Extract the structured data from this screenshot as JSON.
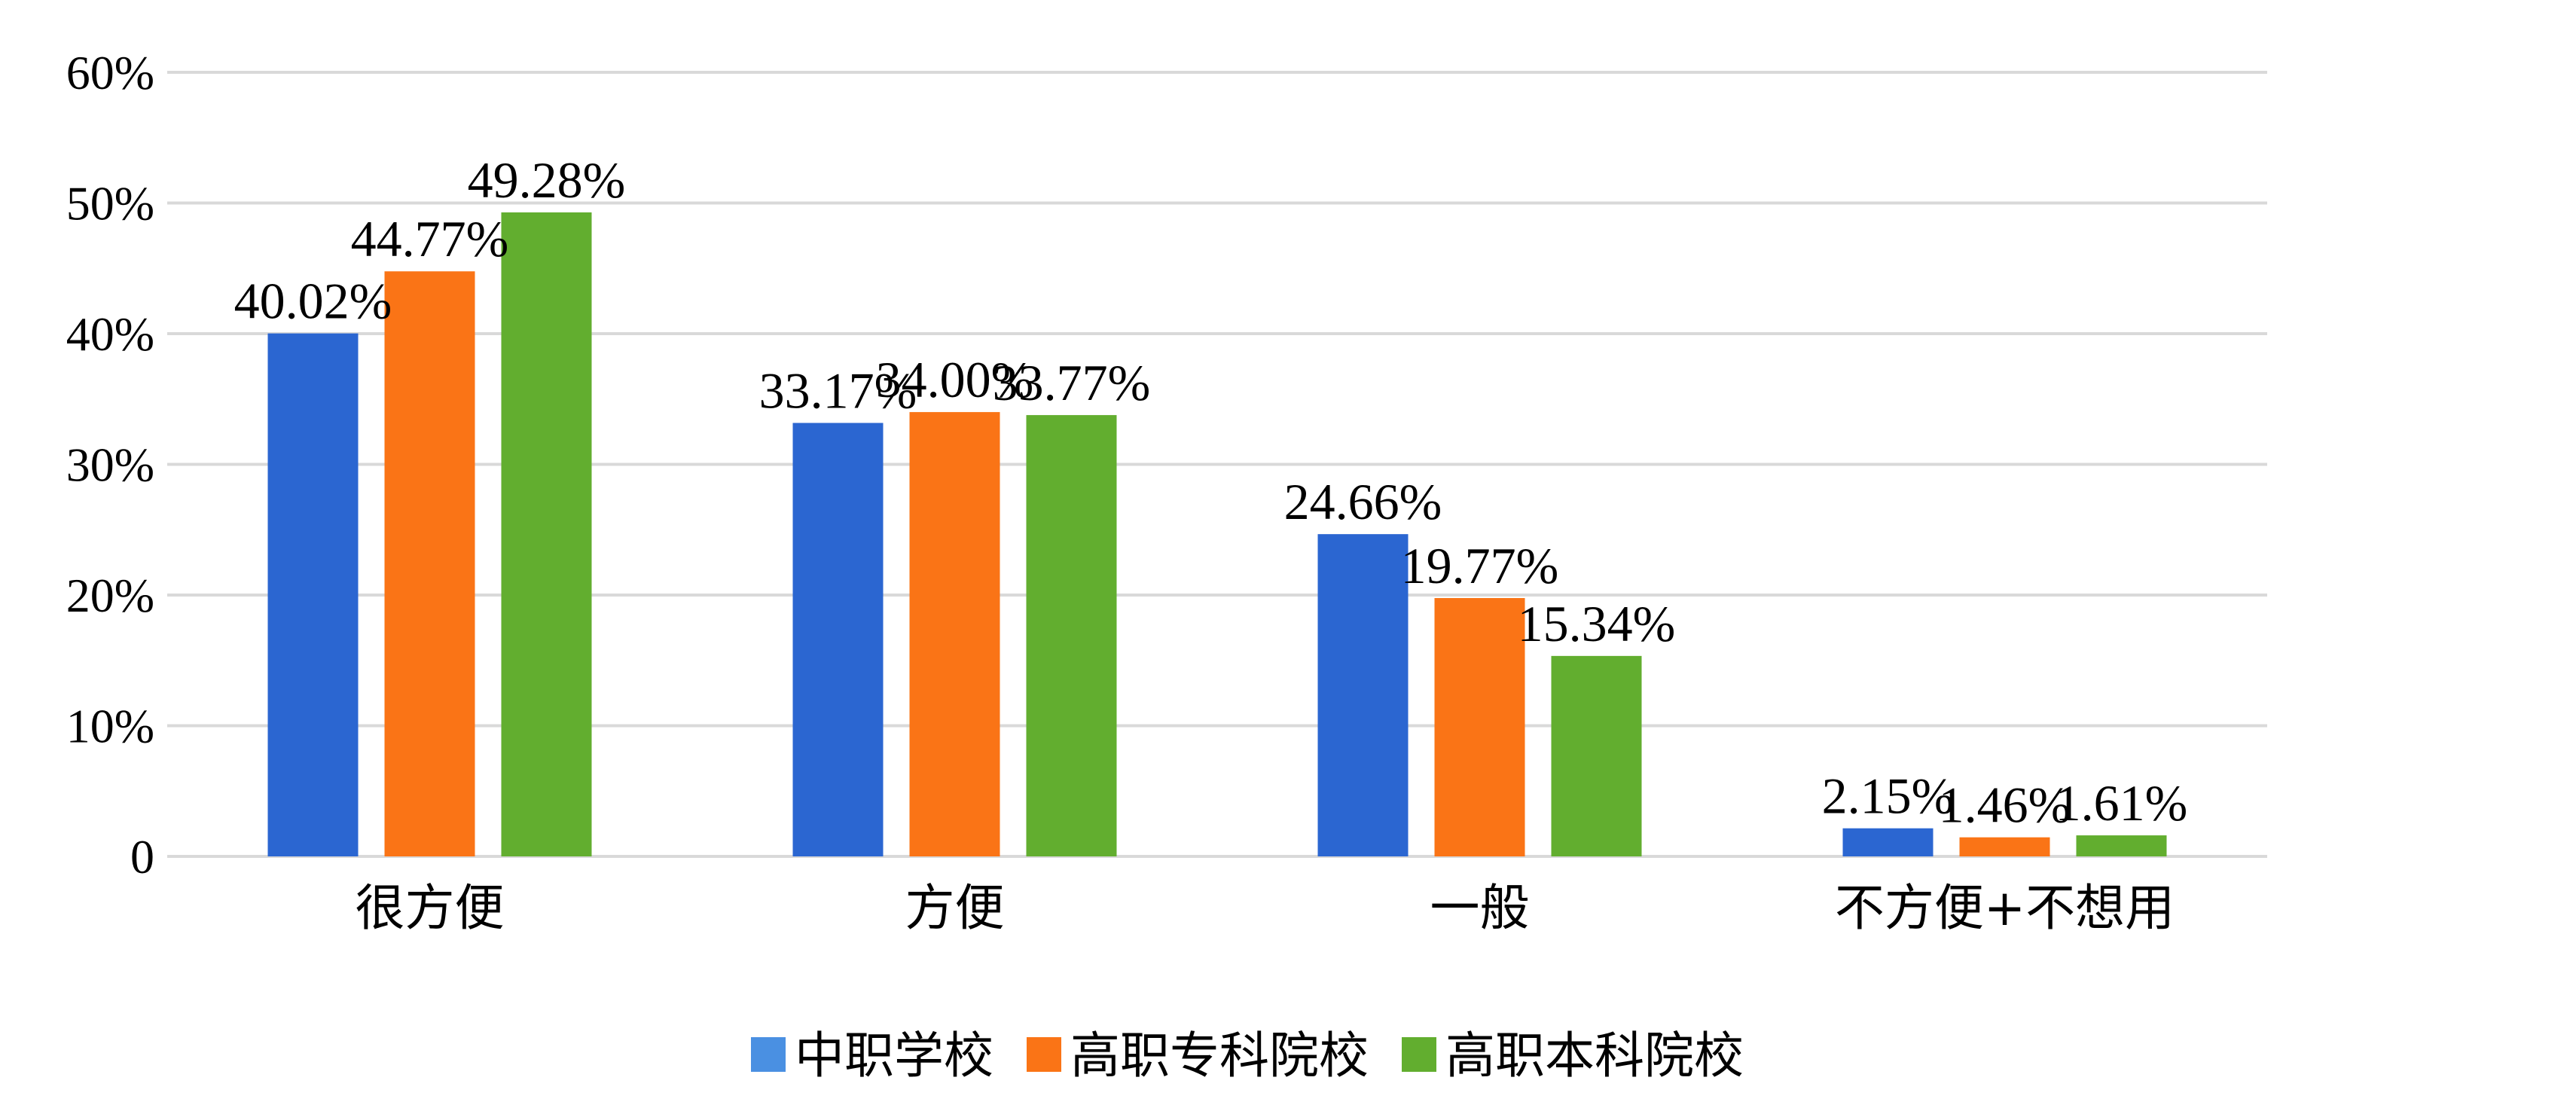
{
  "chart_data": {
    "type": "bar",
    "categories": [
      "很方便",
      "方便",
      "一般",
      "不方便+不想用"
    ],
    "series": [
      {
        "name": "中职学校",
        "values": [
          40.02,
          33.17,
          24.66,
          2.15
        ],
        "labels": [
          "40.02%",
          "33.17%",
          "24.66%",
          "2.15%"
        ],
        "color": "#2b66d1",
        "legend_color": "#4a90e2"
      },
      {
        "name": "高职专科院校",
        "values": [
          44.77,
          34.0,
          19.77,
          1.46
        ],
        "labels": [
          "44.77%",
          "34.00%",
          "19.77%",
          "1.46%"
        ],
        "color": "#fa7416",
        "legend_color": "#fa7416"
      },
      {
        "name": "高职本科院校",
        "values": [
          49.28,
          33.77,
          15.34,
          1.61
        ],
        "labels": [
          "49.28%",
          "33.77%",
          "15.34%",
          "1.61%"
        ],
        "color": "#62ae2f",
        "legend_color": "#62ae2f"
      }
    ],
    "yticks": [
      {
        "value": 0,
        "label": "0"
      },
      {
        "value": 10,
        "label": "10%"
      },
      {
        "value": 20,
        "label": "20%"
      },
      {
        "value": 30,
        "label": "30%"
      },
      {
        "value": 40,
        "label": "40%"
      },
      {
        "value": 50,
        "label": "50%"
      },
      {
        "value": 60,
        "label": "60%"
      }
    ],
    "ylim": [
      0,
      60
    ],
    "grid": true,
    "legend_position": "bottom"
  }
}
